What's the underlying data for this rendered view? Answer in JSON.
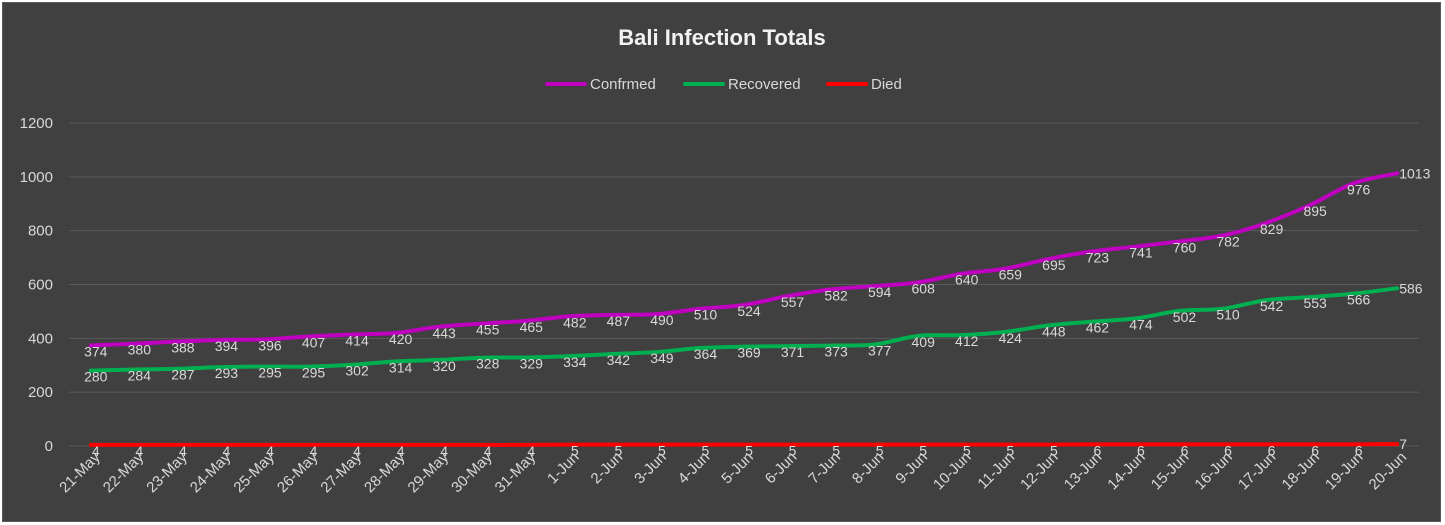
{
  "chart_data": {
    "type": "line",
    "title": "Bali Infection Totals",
    "xlabel": "",
    "ylabel": "",
    "ylim": [
      0,
      1200
    ],
    "yticks": [
      0,
      200,
      400,
      600,
      800,
      1000,
      1200
    ],
    "grid": true,
    "legend_position": "top",
    "categories": [
      "21-May",
      "22-May",
      "23-May",
      "24-May",
      "25-May",
      "26-May",
      "27-May",
      "28-May",
      "29-May",
      "30-May",
      "31-May",
      "1-Jun",
      "2-Jun",
      "3-Jun",
      "4-Jun",
      "5-Jun",
      "6-Jun",
      "7-Jun",
      "8-Jun",
      "9-Jun",
      "10-Jun",
      "11-Jun",
      "12-Jun",
      "13-Jun",
      "14-Jun",
      "15-Jun",
      "16-Jun",
      "17-Jun",
      "18-Jun",
      "19-Jun",
      "20-Jun"
    ],
    "series": [
      {
        "name": "Confrmed",
        "color": "#c000c0",
        "values": [
          374,
          380,
          388,
          394,
          396,
          407,
          414,
          420,
          443,
          455,
          465,
          482,
          487,
          490,
          510,
          524,
          557,
          582,
          594,
          608,
          640,
          659,
          695,
          723,
          741,
          760,
          782,
          829,
          895,
          976,
          1013
        ]
      },
      {
        "name": "Recovered",
        "color": "#00b050",
        "values": [
          280,
          284,
          287,
          293,
          295,
          295,
          302,
          314,
          320,
          328,
          329,
          334,
          342,
          349,
          364,
          369,
          371,
          373,
          377,
          409,
          412,
          424,
          448,
          462,
          474,
          502,
          510,
          542,
          553,
          566,
          586
        ]
      },
      {
        "name": "Died",
        "color": "#ff0000",
        "values": [
          4,
          4,
          4,
          4,
          4,
          4,
          4,
          4,
          4,
          4,
          4,
          5,
          5,
          5,
          5,
          5,
          5,
          5,
          5,
          5,
          5,
          5,
          5,
          6,
          6,
          6,
          6,
          6,
          6,
          6,
          7
        ]
      }
    ]
  },
  "colors": {
    "background": "#404040",
    "gridline": "#595959",
    "text": "#d9d9d9",
    "title": "#f2f2f2"
  }
}
